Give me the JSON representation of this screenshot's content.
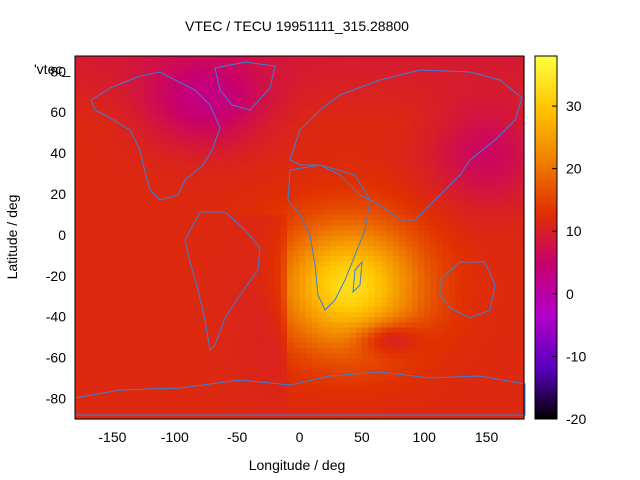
{
  "chart_data": {
    "type": "heatmap",
    "title": "VTEC / TECU 19951111_315.28800",
    "xlabel": "Longitude / deg",
    "ylabel": "Latitude / deg",
    "legend_label": "'vtec_",
    "xlim": [
      -180,
      180
    ],
    "ylim": [
      -90,
      87.5
    ],
    "x_ticks": [
      -150,
      -100,
      -50,
      0,
      50,
      100,
      150
    ],
    "y_ticks": [
      -80,
      -60,
      -40,
      -20,
      0,
      20,
      40,
      60,
      80
    ],
    "y_tick_labels": [
      "-80",
      "-60",
      "-40",
      "-20",
      "0",
      "20",
      "40",
      "60",
      "80"
    ],
    "colorbar": {
      "range": [
        -20,
        38
      ],
      "ticks": [
        -20,
        -10,
        0,
        10,
        20,
        30
      ],
      "palette": [
        "#000000",
        "#5a00c0",
        "#b000c8",
        "#c8006e",
        "#e03000",
        "#f08000",
        "#ffc400",
        "#ffff40"
      ]
    },
    "grid": false,
    "regions": [
      {
        "name": "background",
        "value": 12
      },
      {
        "name": "africa-indian-ocean-peak",
        "lon": 40,
        "lat": -25,
        "value": 33
      },
      {
        "name": "south-indian-ocean-depression",
        "lon": 70,
        "lat": -50,
        "value": 8
      },
      {
        "name": "north-atlantic-low",
        "lon": -75,
        "lat": 65,
        "value": 4
      },
      {
        "name": "east-asia-north-pacific-low",
        "lon": 150,
        "lat": 40,
        "value": 6
      },
      {
        "name": "southern-ocean",
        "lon": 0,
        "lat": -80,
        "value": 13
      }
    ]
  }
}
